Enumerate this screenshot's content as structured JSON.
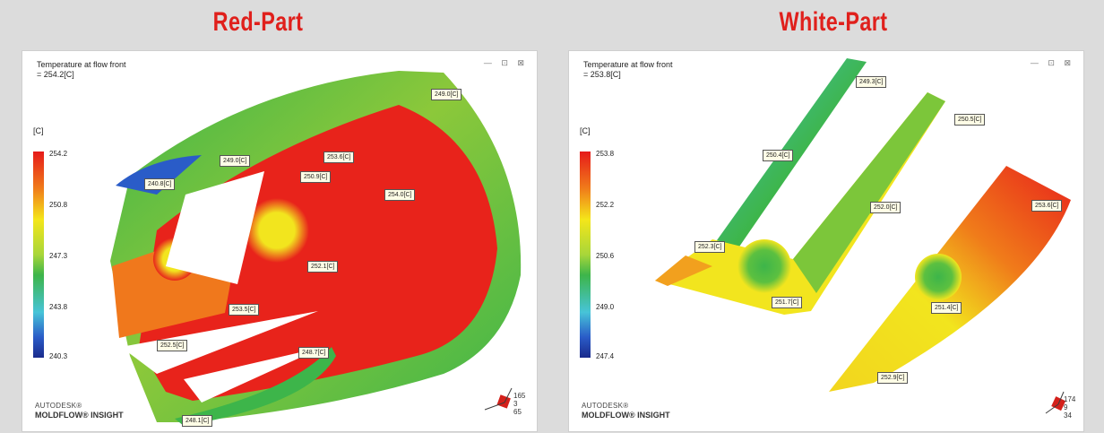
{
  "panels": [
    {
      "title": "Red-Part",
      "result_title_line1": "Temperature at flow front",
      "result_title_line2": "= 254.2[C]",
      "window_controls": "— ⊡ ⊠",
      "unit": "[C]",
      "legend_ticks": [
        "254.2",
        "250.8",
        "247.3",
        "243.8",
        "240.3"
      ],
      "brand_line1": "AUTODESK®",
      "brand_line2": "MOLDFLOW® INSIGHT",
      "probes": [
        "249.0[C]",
        "253.6[C]",
        "249.0[C]",
        "240.8[C]",
        "250.9[C]",
        "254.0[C]",
        "252.1[C]",
        "253.5[C]",
        "252.5[C]",
        "248.7[C]",
        "248.1[C]"
      ],
      "axis_numbers": [
        "165",
        "3",
        "65"
      ],
      "colors": {
        "hot": "#e8231b",
        "mid": "#f2e51e",
        "cool": "#3db54a",
        "cold": "#2a5cc8"
      }
    },
    {
      "title": "White-Part",
      "result_title_line1": "Temperature at flow front",
      "result_title_line2": "= 253.8[C]",
      "window_controls": "— ⊡ ⊠",
      "unit": "[C]",
      "legend_ticks": [
        "253.8",
        "252.2",
        "250.6",
        "249.0",
        "247.4"
      ],
      "brand_line1": "AUTODESK®",
      "brand_line2": "MOLDFLOW® INSIGHT",
      "probes": [
        "249.3[C]",
        "250.5[C]",
        "250.4[C]",
        "252.0[C]",
        "253.6[C]",
        "252.3[C]",
        "251.7[C]",
        "251.4[C]",
        "252.9[C]"
      ],
      "axis_numbers": [
        "174",
        "9",
        "34"
      ],
      "colors": {
        "hot": "#e8231b",
        "mid": "#f2e51e",
        "cool": "#3db54a",
        "cold": "#2a5cc8"
      }
    }
  ]
}
